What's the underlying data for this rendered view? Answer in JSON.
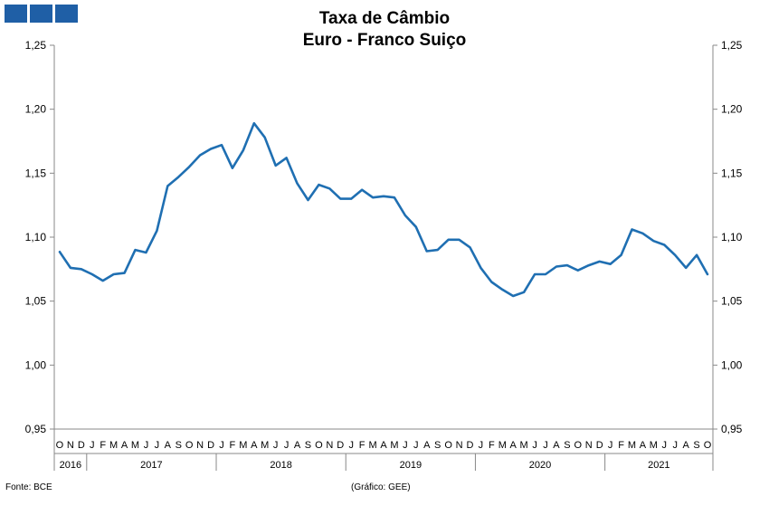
{
  "header": {
    "title_line1": "Taxa de Câmbio",
    "title_line2": "Euro - Franco Suiço",
    "logo_color": "#1f5fa6"
  },
  "footer": {
    "source": "Fonte: BCE",
    "credit": "(Gráfico: GEE)"
  },
  "chart_data": {
    "type": "line",
    "title": "Taxa de Câmbio Euro - Franco Suiço",
    "xlabel": "",
    "ylabel": "",
    "ylim": [
      0.95,
      1.25
    ],
    "y_ticks": [
      "0,95",
      "1,00",
      "1,05",
      "1,10",
      "1,15",
      "1,20",
      "1,25"
    ],
    "y_axis_both_sides": true,
    "grid": false,
    "line_color": "#1f6fb2",
    "x_month_labels": [
      "O",
      "N",
      "D",
      "J",
      "F",
      "M",
      "A",
      "M",
      "J",
      "J",
      "A",
      "S",
      "O",
      "N",
      "D",
      "J",
      "F",
      "M",
      "A",
      "M",
      "J",
      "J",
      "A",
      "S",
      "O",
      "N",
      "D",
      "J",
      "F",
      "M",
      "A",
      "M",
      "J",
      "J",
      "A",
      "S",
      "O",
      "N",
      "D",
      "J",
      "F",
      "M",
      "A",
      "M",
      "J",
      "J",
      "A",
      "S",
      "O",
      "N",
      "D",
      "J",
      "F",
      "M",
      "A",
      "M",
      "J",
      "J",
      "A",
      "S",
      "O"
    ],
    "years": [
      {
        "label": "2016",
        "start": 0,
        "count": 3
      },
      {
        "label": "2017",
        "start": 3,
        "count": 12
      },
      {
        "label": "2018",
        "start": 15,
        "count": 12
      },
      {
        "label": "2019",
        "start": 27,
        "count": 12
      },
      {
        "label": "2020",
        "start": 39,
        "count": 12
      },
      {
        "label": "2021",
        "start": 51,
        "count": 10
      }
    ],
    "series": [
      {
        "values": [
          1.0885,
          1.076,
          1.075,
          1.071,
          1.066,
          1.071,
          1.072,
          1.09,
          1.088,
          1.105,
          1.14,
          1.147,
          1.155,
          1.164,
          1.169,
          1.172,
          1.154,
          1.168,
          1.189,
          1.178,
          1.156,
          1.162,
          1.142,
          1.129,
          1.141,
          1.138,
          1.13,
          1.13,
          1.137,
          1.131,
          1.132,
          1.131,
          1.117,
          1.108,
          1.089,
          1.09,
          1.098,
          1.098,
          1.092,
          1.076,
          1.065,
          1.059,
          1.054,
          1.057,
          1.071,
          1.071,
          1.077,
          1.078,
          1.074,
          1.078,
          1.081,
          1.079,
          1.086,
          1.106,
          1.103,
          1.097,
          1.094,
          1.086,
          1.076,
          1.086,
          1.071
        ]
      }
    ]
  }
}
